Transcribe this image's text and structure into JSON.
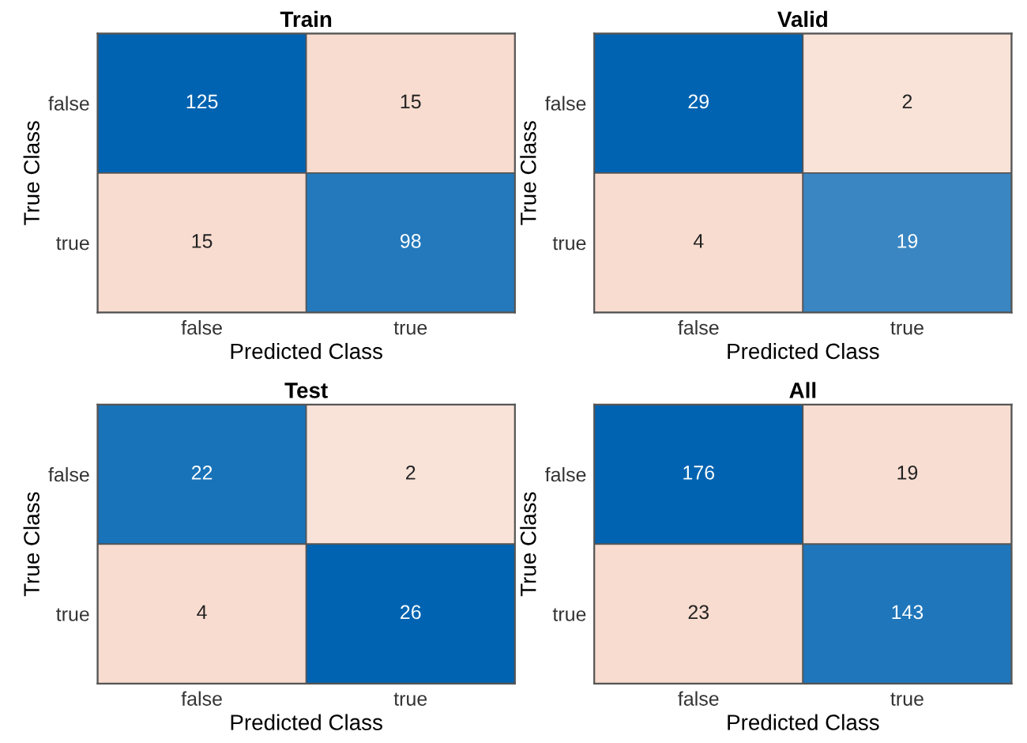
{
  "chart_data": [
    {
      "type": "heatmap",
      "data_labels": true,
      "title": "Train",
      "xlabel": "Predicted Class",
      "ylabel": "True Class",
      "categories": [
        "false",
        "true"
      ],
      "y_categories": [
        "false",
        "true"
      ],
      "cells": [
        [
          125,
          15
        ],
        [
          15,
          98
        ]
      ]
    },
    {
      "type": "heatmap",
      "data_labels": true,
      "title": "Valid",
      "xlabel": "Predicted Class",
      "ylabel": "True Class",
      "categories": [
        "false",
        "true"
      ],
      "y_categories": [
        "false",
        "true"
      ],
      "cells": [
        [
          29,
          2
        ],
        [
          4,
          19
        ]
      ]
    },
    {
      "type": "heatmap",
      "data_labels": true,
      "title": "Test",
      "xlabel": "Predicted Class",
      "ylabel": "True Class",
      "categories": [
        "false",
        "true"
      ],
      "y_categories": [
        "false",
        "true"
      ],
      "cells": [
        [
          22,
          2
        ],
        [
          4,
          26
        ]
      ]
    },
    {
      "type": "heatmap",
      "data_labels": true,
      "title": "All",
      "xlabel": "Predicted Class",
      "ylabel": "True Class",
      "categories": [
        "false",
        "true"
      ],
      "y_categories": [
        "false",
        "true"
      ],
      "cells": [
        [
          176,
          19
        ],
        [
          23,
          143
        ]
      ]
    }
  ]
}
